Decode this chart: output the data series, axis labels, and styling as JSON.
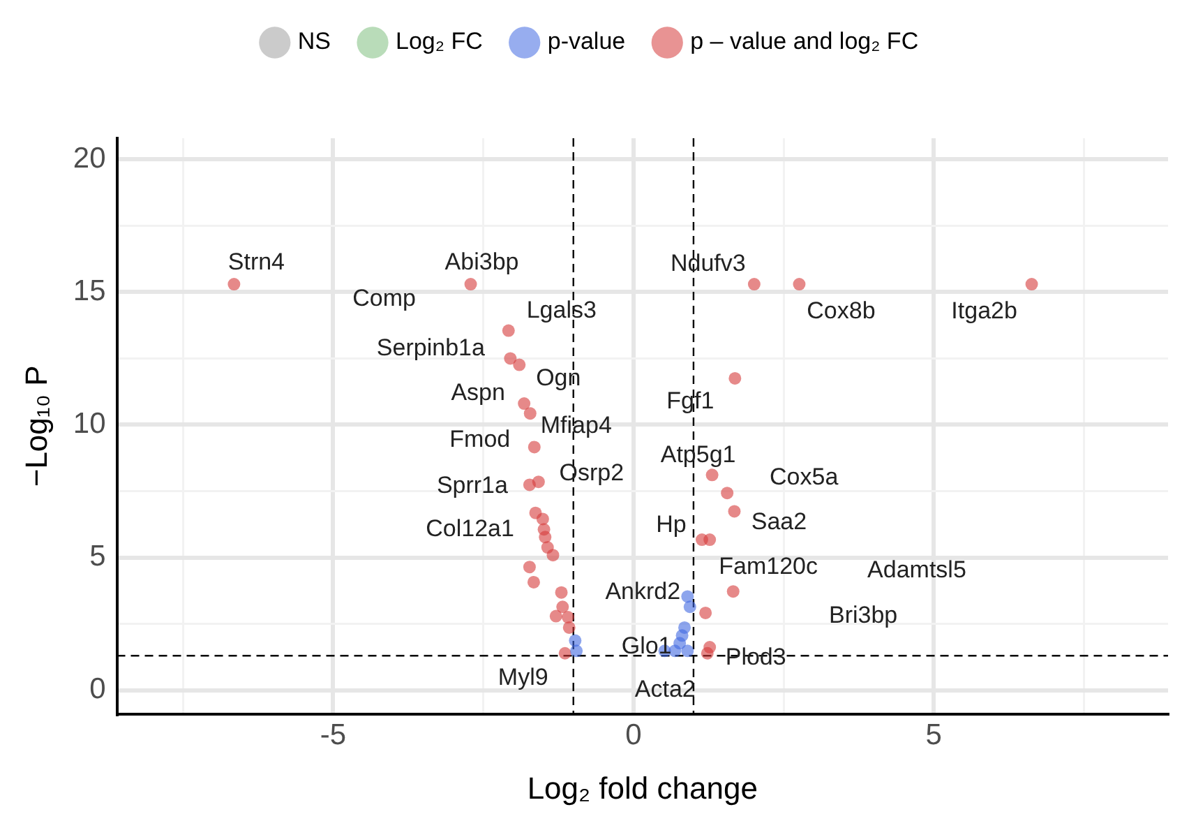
{
  "chart_data": {
    "type": "scatter",
    "xlabel": "Log₂ fold change",
    "ylabel": "−Log₁₀ P",
    "xlim": [
      -8.6,
      8.9
    ],
    "ylim": [
      -0.9,
      20.8
    ],
    "xticks": [
      {
        "value": -7.5,
        "label": null
      },
      -5,
      {
        "value": -2.5,
        "label": null
      },
      0,
      {
        "value": 2.5,
        "label": null
      },
      5,
      {
        "value": 7.5,
        "label": null
      }
    ],
    "yticks": [
      0,
      {
        "value": 2.5,
        "label": null
      },
      5,
      {
        "value": 7.5,
        "label": null
      },
      10,
      {
        "value": 12.5,
        "label": null
      },
      15,
      {
        "value": 17.5,
        "label": null
      },
      20
    ],
    "grid": true,
    "legend": "top",
    "marker": "circle",
    "series": [
      {
        "name": "NS",
        "color": "#a0a0a0"
      },
      {
        "name": "Log₂ FC",
        "color": "#7fbf7f"
      },
      {
        "name": "p-value",
        "color": "#4169e1",
        "x": [
          0.9,
          0.94,
          0.85,
          0.81,
          0.77,
          0.52,
          0.69,
          0.9,
          -0.97,
          -0.95
        ],
        "values": [
          3.53,
          3.14,
          2.36,
          2.06,
          1.77,
          1.48,
          1.48,
          1.48,
          1.87,
          1.48
        ]
      },
      {
        "name": "p – value and log₂ FC",
        "color": "#d63a3a",
        "x": [
          -6.65,
          6.63,
          -2.71,
          2.01,
          2.76,
          -2.08,
          -2.05,
          -1.9,
          -1.82,
          -1.72,
          -1.65,
          -1.73,
          -1.58,
          -1.63,
          -1.51,
          -1.49,
          -1.47,
          -1.43,
          -1.34,
          -1.73,
          -1.66,
          -1.2,
          -1.18,
          -1.29,
          -1.09,
          -1.07,
          -1.14,
          1.69,
          1.31,
          1.56,
          1.68,
          1.14,
          1.27,
          1.66,
          1.2,
          1.27,
          1.23
        ],
        "values": [
          15.3,
          15.3,
          15.3,
          15.3,
          15.3,
          13.55,
          12.5,
          12.26,
          10.8,
          10.43,
          9.16,
          7.74,
          7.85,
          6.68,
          6.45,
          6.06,
          5.77,
          5.38,
          5.09,
          4.64,
          4.07,
          3.68,
          3.14,
          2.79,
          2.75,
          2.36,
          1.39,
          11.75,
          8.11,
          7.43,
          6.74,
          5.67,
          5.67,
          3.72,
          2.91,
          1.62,
          1.39
        ]
      }
    ],
    "ref_lines": [
      {
        "axis": "x",
        "value": -1,
        "line_style": "dashed"
      },
      {
        "axis": "x",
        "value": 1,
        "line_style": "dashed"
      },
      {
        "axis": "y",
        "value": 1.3,
        "line_style": "dashed"
      }
    ],
    "annotations": [
      {
        "text": "Strn4",
        "x": -6.65,
        "y": 15.3
      },
      {
        "text": "Abi3bp",
        "x": -2.71,
        "y": 15.3
      },
      {
        "text": "Comp",
        "x": -2.71,
        "y": 15.3
      },
      {
        "text": "Lgals3",
        "x": -2.08,
        "y": 13.55
      },
      {
        "text": "Serpinb1a",
        "x": -2.05,
        "y": 12.5
      },
      {
        "text": "Ogn",
        "x": -1.9,
        "y": 12.26
      },
      {
        "text": "Aspn",
        "x": -1.82,
        "y": 10.8
      },
      {
        "text": "Mfiap4",
        "x": -1.72,
        "y": 10.43
      },
      {
        "text": "Fmod",
        "x": -1.65,
        "y": 9.16
      },
      {
        "text": "Osrp2",
        "x": -1.58,
        "y": 7.85
      },
      {
        "text": "Sprr1a",
        "x": -1.73,
        "y": 7.74
      },
      {
        "text": "Col12a1",
        "x": -1.63,
        "y": 6.68
      },
      {
        "text": "Myl9",
        "x": -1.14,
        "y": 1.39
      },
      {
        "text": "Ankrd2",
        "x": 0.9,
        "y": 3.53
      },
      {
        "text": "Glo1",
        "x": 0.52,
        "y": 1.48
      },
      {
        "text": "Acta2",
        "x": 0.69,
        "y": 1.48
      },
      {
        "text": "Ndufv3",
        "x": 2.01,
        "y": 15.3
      },
      {
        "text": "Cox8b",
        "x": 2.76,
        "y": 15.3
      },
      {
        "text": "Itga2b",
        "x": 6.63,
        "y": 15.3
      },
      {
        "text": "Fgf1",
        "x": 1.69,
        "y": 11.75
      },
      {
        "text": "Atp5g1",
        "x": 1.31,
        "y": 8.11
      },
      {
        "text": "Cox5a",
        "x": 1.56,
        "y": 7.43
      },
      {
        "text": "Hp",
        "x": 1.14,
        "y": 5.67
      },
      {
        "text": "Saa2",
        "x": 1.68,
        "y": 6.74
      },
      {
        "text": "Fam120c",
        "x": 1.27,
        "y": 5.67
      },
      "Adamtsl5",
      "Bri3bp",
      {
        "text": "Plod3",
        "x": 1.27,
        "y": 1.62
      }
    ]
  }
}
